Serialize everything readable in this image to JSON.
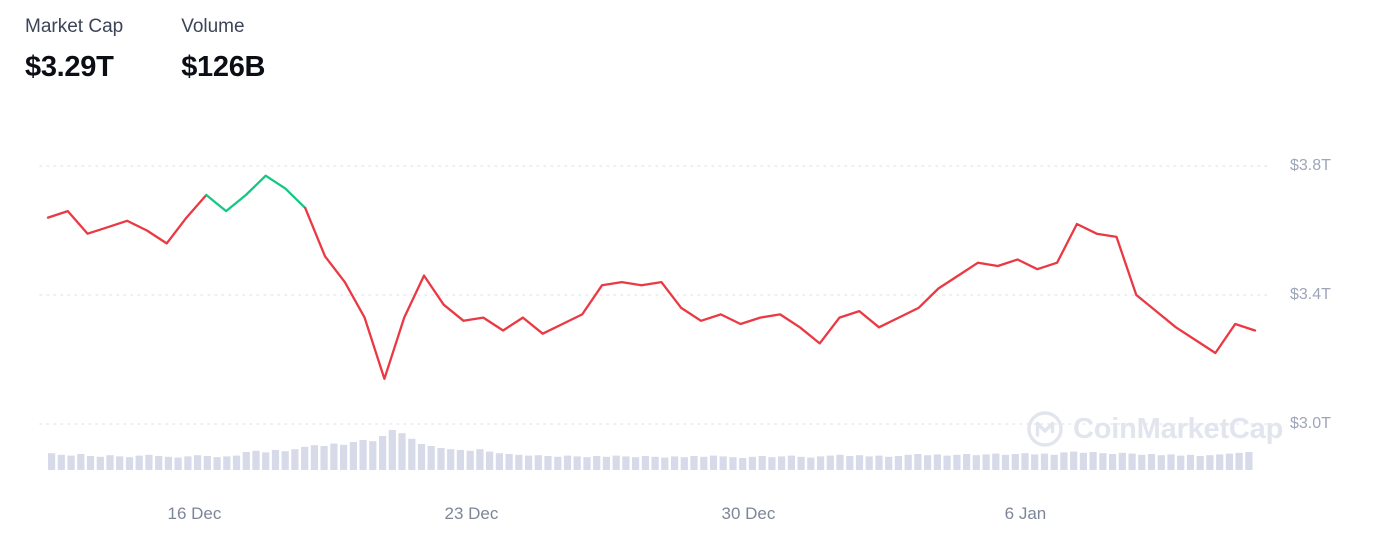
{
  "stats": {
    "market_cap": {
      "label": "Market Cap",
      "value": "$3.29T"
    },
    "volume": {
      "label": "Volume",
      "value": "$126B"
    }
  },
  "watermark": {
    "text": "CoinMarketCap"
  },
  "chart_data": {
    "type": "line",
    "series": [
      {
        "name": "Market Cap",
        "unit": "trillion USD",
        "step_days": 0.5,
        "values": [
          3.64,
          3.66,
          3.59,
          3.61,
          3.63,
          3.6,
          3.56,
          3.64,
          3.71,
          3.66,
          3.71,
          3.77,
          3.73,
          3.67,
          3.52,
          3.44,
          3.33,
          3.14,
          3.33,
          3.46,
          3.37,
          3.32,
          3.33,
          3.29,
          3.33,
          3.28,
          3.31,
          3.34,
          3.43,
          3.44,
          3.43,
          3.44,
          3.36,
          3.32,
          3.34,
          3.31,
          3.33,
          3.34,
          3.3,
          3.25,
          3.33,
          3.35,
          3.3,
          3.33,
          3.36,
          3.42,
          3.46,
          3.5,
          3.49,
          3.51,
          3.48,
          3.5,
          3.62,
          3.59,
          3.58,
          3.4,
          3.35,
          3.3,
          3.26,
          3.22,
          3.31,
          3.29
        ]
      }
    ],
    "volume_bars": {
      "name": "Volume",
      "values": [
        0.42,
        0.38,
        0.36,
        0.4,
        0.35,
        0.33,
        0.37,
        0.34,
        0.32,
        0.36,
        0.38,
        0.35,
        0.33,
        0.31,
        0.34,
        0.37,
        0.35,
        0.32,
        0.34,
        0.36,
        0.45,
        0.48,
        0.44,
        0.5,
        0.47,
        0.52,
        0.58,
        0.62,
        0.6,
        0.66,
        0.63,
        0.7,
        0.75,
        0.72,
        0.85,
        1.0,
        0.92,
        0.78,
        0.65,
        0.6,
        0.55,
        0.52,
        0.5,
        0.48,
        0.52,
        0.46,
        0.42,
        0.4,
        0.38,
        0.36,
        0.37,
        0.35,
        0.33,
        0.36,
        0.34,
        0.32,
        0.35,
        0.33,
        0.36,
        0.34,
        0.32,
        0.35,
        0.33,
        0.31,
        0.34,
        0.32,
        0.35,
        0.33,
        0.36,
        0.34,
        0.32,
        0.3,
        0.33,
        0.35,
        0.32,
        0.34,
        0.36,
        0.33,
        0.31,
        0.34,
        0.36,
        0.38,
        0.35,
        0.37,
        0.34,
        0.36,
        0.33,
        0.35,
        0.38,
        0.4,
        0.37,
        0.39,
        0.36,
        0.38,
        0.4,
        0.37,
        0.39,
        0.41,
        0.38,
        0.4,
        0.42,
        0.39,
        0.41,
        0.38,
        0.44,
        0.46,
        0.43,
        0.45,
        0.42,
        0.4,
        0.43,
        0.41,
        0.38,
        0.4,
        0.37,
        0.39,
        0.36,
        0.38,
        0.35,
        0.37,
        0.39,
        0.41,
        0.43,
        0.45
      ]
    },
    "days_span": 30.5,
    "x_ticks": [
      {
        "label": "16 Dec",
        "day": 3.7
      },
      {
        "label": "23 Dec",
        "day": 10.7
      },
      {
        "label": "30 Dec",
        "day": 17.7
      },
      {
        "label": "6 Jan",
        "day": 24.7
      }
    ],
    "y_ticks": [
      {
        "label": "$3.8T",
        "value": 3.8
      },
      {
        "label": "$3.4T",
        "value": 3.4
      },
      {
        "label": "$3.0T",
        "value": 3.0
      }
    ],
    "y_range": [
      3.0,
      3.8
    ],
    "grid": "dotted horizontal",
    "legend_position": "none",
    "colors": {
      "up": "#16C784",
      "down": "#EA3943",
      "volume": "#D6DAE9",
      "grid": "#E8EAF1",
      "axis_label": "#9DA6B8"
    }
  }
}
